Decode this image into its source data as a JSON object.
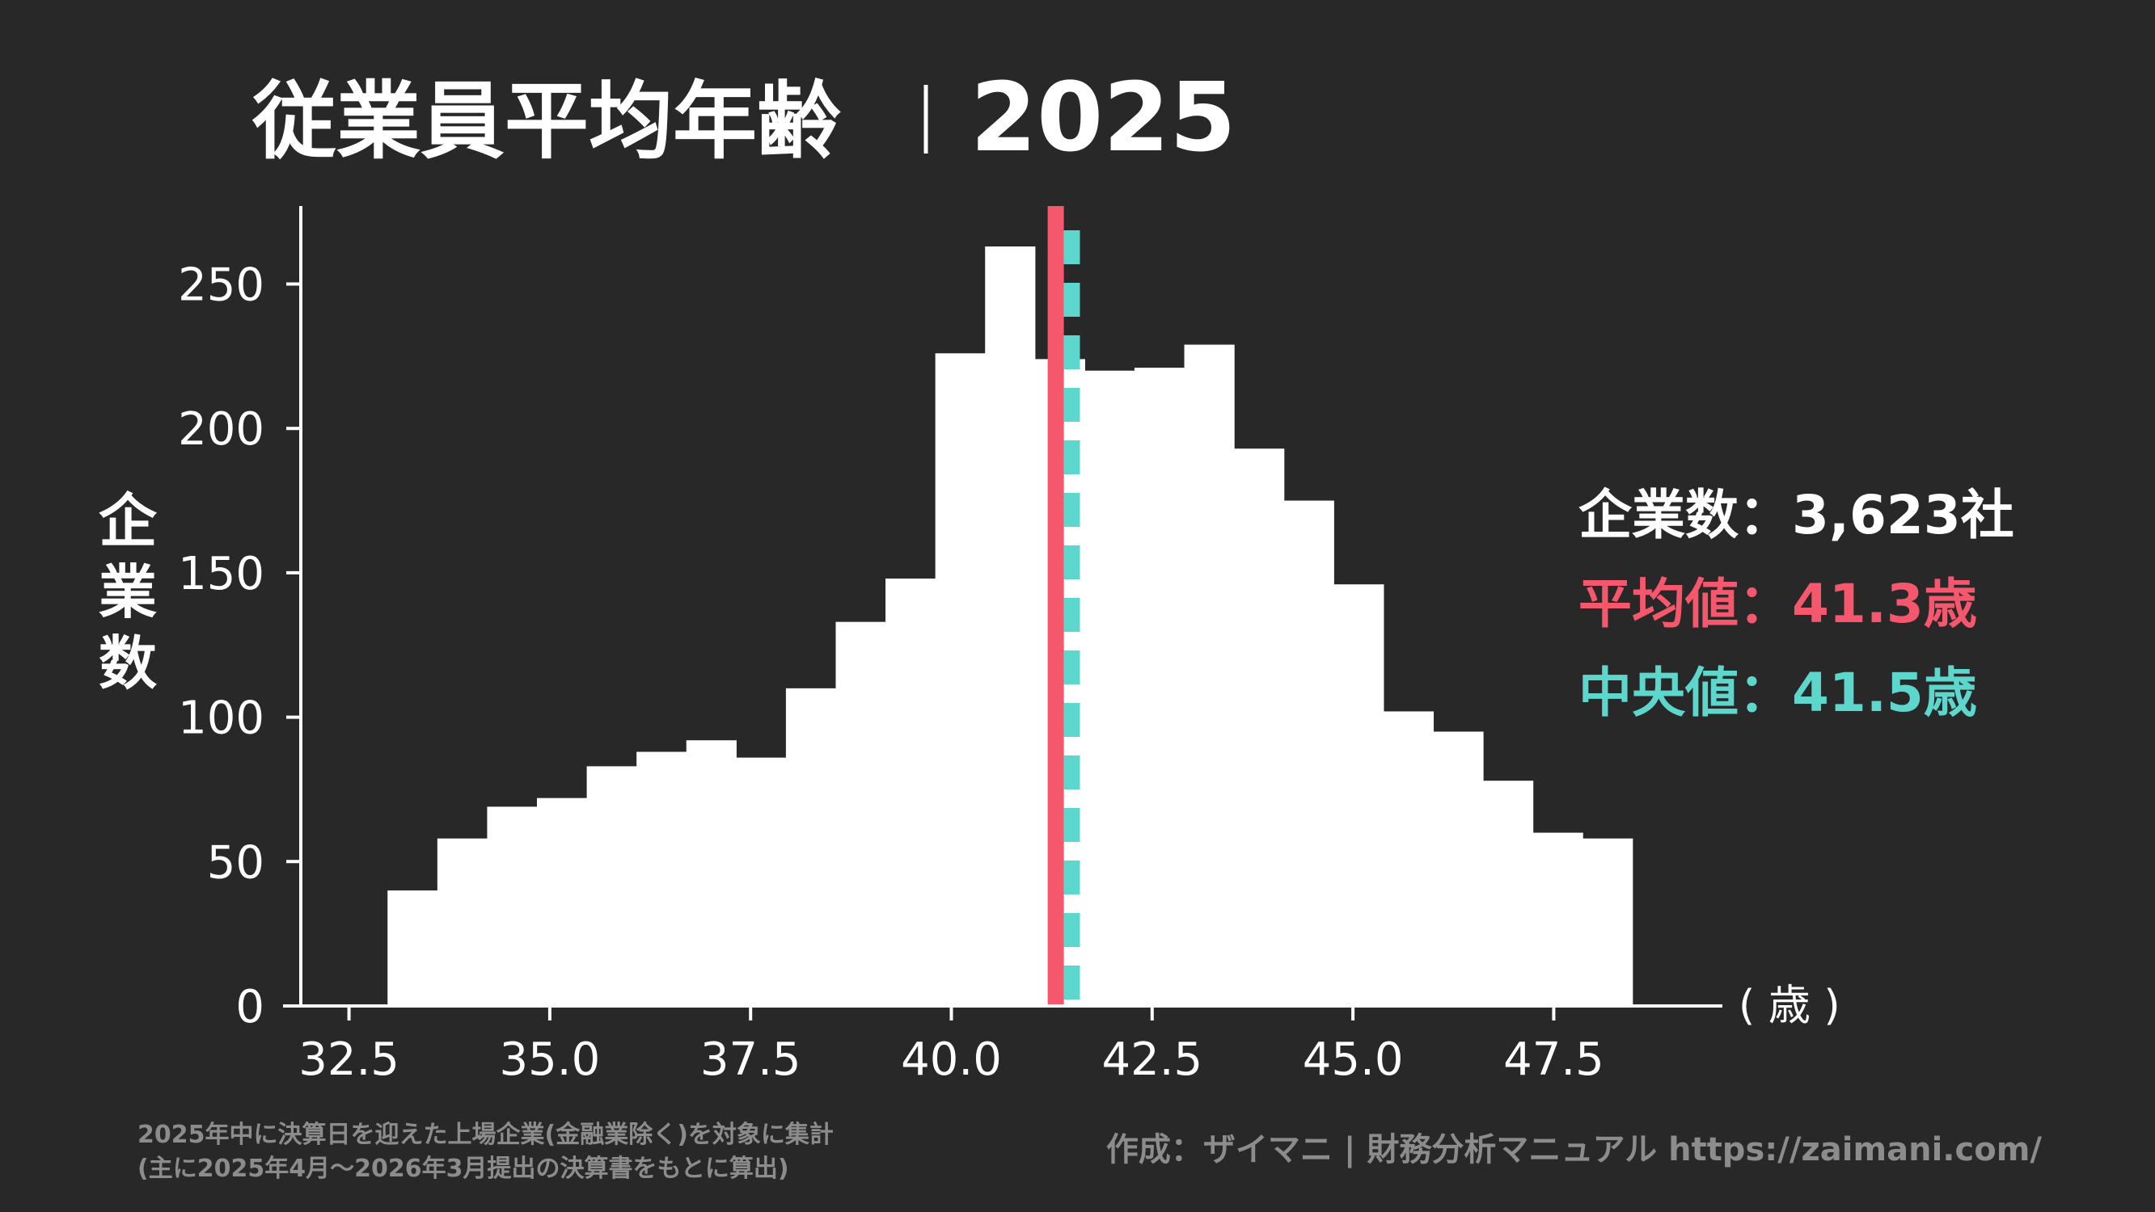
{
  "chart_data": {
    "type": "bar",
    "title": "従業員平均年齢",
    "year": "2025",
    "ylabel": "企業数",
    "xlabel": "( 歳 )",
    "xlim": [
      31.9,
      49.6
    ],
    "ylim": [
      0,
      277
    ],
    "xticks": [
      32.5,
      35.0,
      37.5,
      40.0,
      42.5,
      45.0,
      47.5
    ],
    "xtick_labels": [
      "32.5",
      "35.0",
      "37.5",
      "40.0",
      "42.5",
      "45.0",
      "47.5"
    ],
    "yticks": [
      0,
      50,
      100,
      150,
      200,
      250
    ],
    "ytick_labels": [
      "0",
      "50",
      "100",
      "150",
      "200",
      "250"
    ],
    "bin_width": 0.62,
    "bins": [
      {
        "start": 32.98,
        "end": 33.6,
        "value": 40
      },
      {
        "start": 33.6,
        "end": 34.22,
        "value": 58
      },
      {
        "start": 34.22,
        "end": 34.84,
        "value": 69
      },
      {
        "start": 34.84,
        "end": 35.46,
        "value": 72
      },
      {
        "start": 35.46,
        "end": 36.08,
        "value": 83
      },
      {
        "start": 36.08,
        "end": 36.7,
        "value": 88
      },
      {
        "start": 36.7,
        "end": 37.32,
        "value": 92
      },
      {
        "start": 37.32,
        "end": 37.94,
        "value": 86
      },
      {
        "start": 37.94,
        "end": 38.56,
        "value": 110
      },
      {
        "start": 38.56,
        "end": 39.18,
        "value": 133
      },
      {
        "start": 39.18,
        "end": 39.8,
        "value": 148
      },
      {
        "start": 39.8,
        "end": 40.42,
        "value": 226
      },
      {
        "start": 40.42,
        "end": 41.04,
        "value": 263
      },
      {
        "start": 41.04,
        "end": 41.66,
        "value": 224
      },
      {
        "start": 41.66,
        "end": 42.28,
        "value": 220
      },
      {
        "start": 42.28,
        "end": 42.9,
        "value": 221
      },
      {
        "start": 42.9,
        "end": 43.52,
        "value": 229
      },
      {
        "start": 43.52,
        "end": 44.14,
        "value": 193
      },
      {
        "start": 44.14,
        "end": 44.76,
        "value": 175
      },
      {
        "start": 44.76,
        "end": 45.38,
        "value": 146
      },
      {
        "start": 45.38,
        "end": 46.0,
        "value": 102
      },
      {
        "start": 46.0,
        "end": 46.62,
        "value": 95
      },
      {
        "start": 46.62,
        "end": 47.24,
        "value": 78
      },
      {
        "start": 47.24,
        "end": 47.86,
        "value": 60
      },
      {
        "start": 47.86,
        "end": 48.48,
        "value": 58
      }
    ],
    "mean": 41.3,
    "median": 41.5,
    "colors": {
      "background": "#282828",
      "bars": "#ffffff",
      "mean_line": "#f5576c",
      "median_line": "#5dd6cb",
      "text": "#ffffff",
      "footnote": "#8c8c8c"
    },
    "stats": {
      "count_label": "企業数",
      "count_value": "3,623社",
      "mean_label": "平均値",
      "mean_value": "41.3歳",
      "median_label": "中央値",
      "median_value": "41.5歳",
      "separator": "："
    },
    "footnote_lines": [
      "2025年中に決算日を迎えた上場企業(金融業除く)を対象に集計",
      "(主に2025年4月～2026年3月提出の決算書をもとに算出)"
    ],
    "credit": "作成：ザイマニ | 財務分析マニュアル https://zaimani.com/"
  }
}
